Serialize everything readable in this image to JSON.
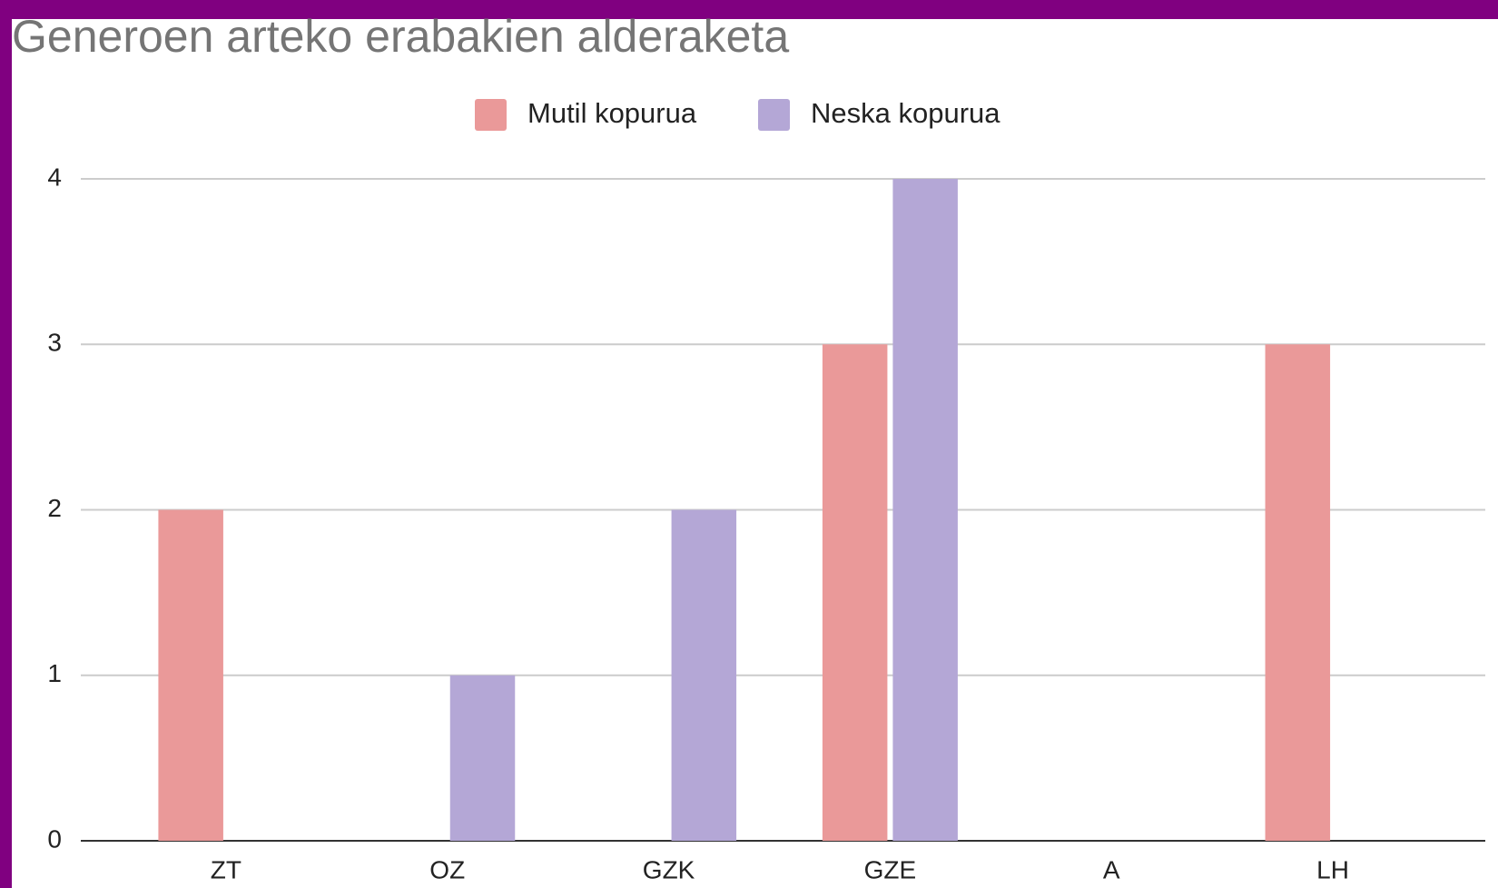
{
  "chart_data": {
    "type": "bar",
    "title": "Generoen arteko erabakien alderaketa",
    "categories": [
      "ZT",
      "OZ",
      "GZK",
      "GZE",
      "A",
      "LH"
    ],
    "series": [
      {
        "name": "Mutil kopurua",
        "color": "#ea9999",
        "values": [
          2,
          0,
          0,
          3,
          0,
          3
        ]
      },
      {
        "name": "Neska kopurua",
        "color": "#b4a7d6",
        "values": [
          0,
          1,
          2,
          4,
          0,
          0
        ]
      }
    ],
    "ylim": [
      0,
      4
    ],
    "yticks": [
      0,
      1,
      2,
      3,
      4
    ],
    "grid": true,
    "legend": "top"
  }
}
